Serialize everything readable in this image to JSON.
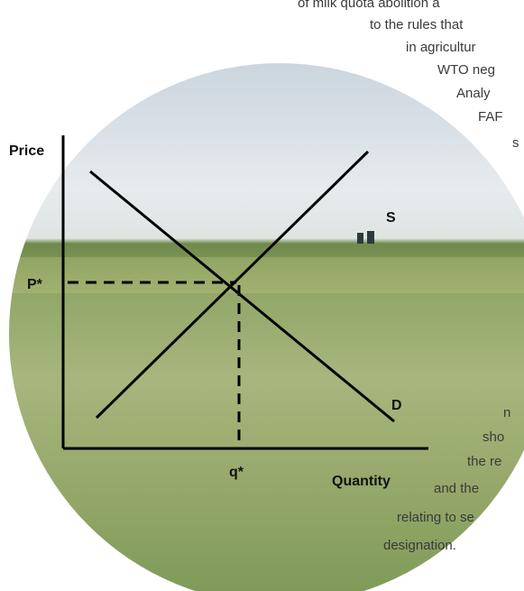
{
  "body_text": [
    "of milk quota abolition a",
    "to the rules that",
    "in agricultur",
    "WTO neg",
    "Analy",
    "FAF",
    "s",
    "n",
    "sho",
    "the re",
    "and the",
    "relating to se",
    "designation."
  ],
  "diagram": {
    "y_axis_label": "Price",
    "x_axis_label": "Quantity",
    "price_label": "P*",
    "quantity_label": "q*",
    "supply_label": "S",
    "demand_label": "D"
  }
}
